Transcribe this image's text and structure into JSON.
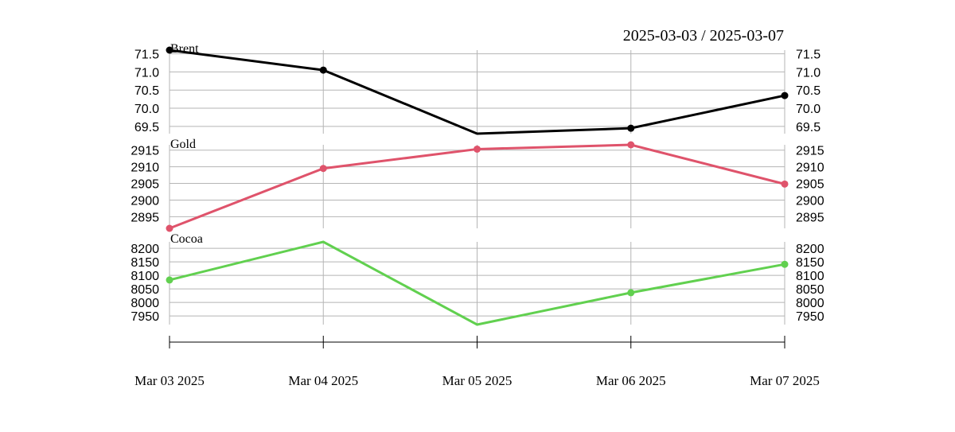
{
  "chart_data": {
    "type": "line",
    "title": "2025-03-03 / 2025-03-07",
    "x": [
      "Mar 03 2025",
      "Mar 04 2025",
      "Mar 05 2025",
      "Mar 06 2025",
      "Mar 07 2025"
    ],
    "panels": [
      {
        "name": "Brent",
        "color": "#000000",
        "values": [
          71.6,
          71.05,
          69.3,
          69.45,
          70.35
        ],
        "ylim": [
          69.3,
          71.6
        ],
        "ticks": [
          "69.5",
          "70.0",
          "70.5",
          "71.0",
          "71.5"
        ],
        "markers": [
          true,
          true,
          false,
          true,
          true
        ]
      },
      {
        "name": "Gold",
        "color": "#df536b",
        "values": [
          2891.5,
          2909.5,
          2915.3,
          2916.6,
          2904.8
        ],
        "ylim": [
          2891.5,
          2916.6
        ],
        "ticks": [
          "2895",
          "2900",
          "2905",
          "2910",
          "2915"
        ],
        "markers": [
          true,
          true,
          true,
          true,
          true
        ]
      },
      {
        "name": "Cocoa",
        "color": "#61d04f",
        "values": [
          8083,
          8224,
          7918,
          8036,
          8141
        ],
        "ylim": [
          7918,
          8224
        ],
        "ticks": [
          "7950",
          "8000",
          "8050",
          "8100",
          "8150",
          "8200"
        ],
        "markers": [
          true,
          false,
          false,
          true,
          true
        ]
      }
    ],
    "grid": true,
    "y_axis_sides": [
      "left",
      "right"
    ]
  }
}
